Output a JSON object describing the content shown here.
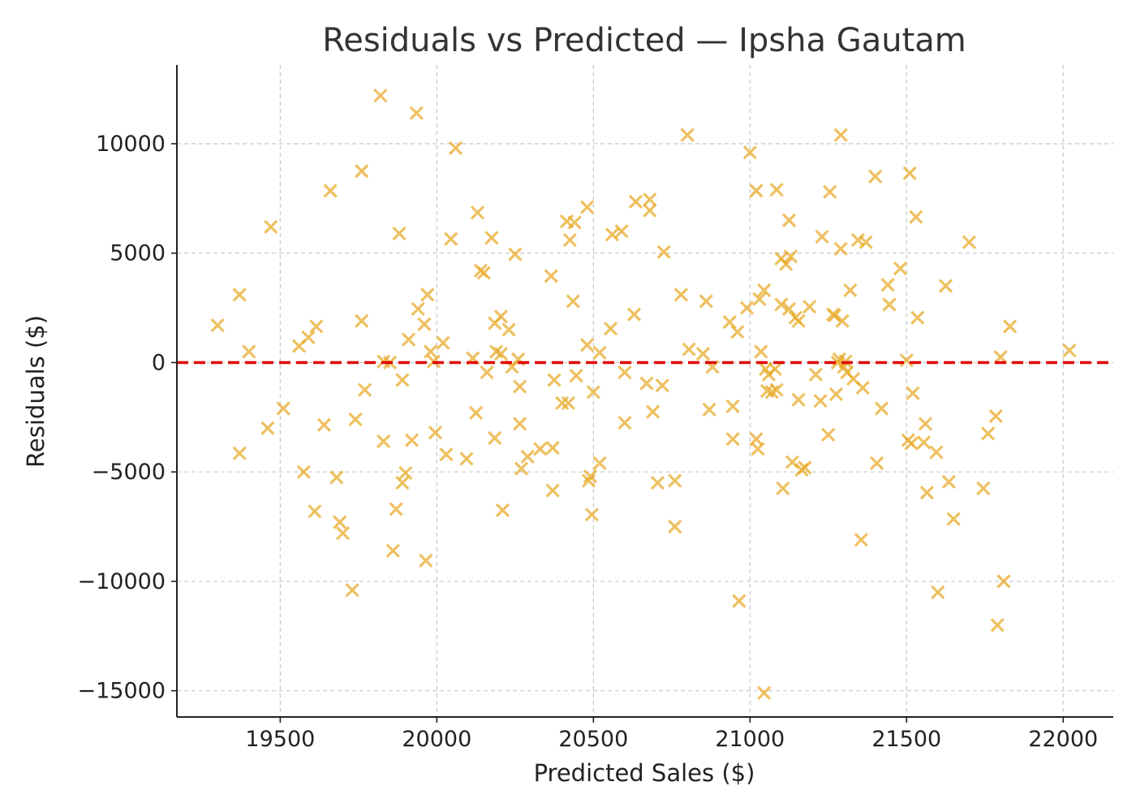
{
  "chart_data": {
    "type": "scatter",
    "title": "Residuals vs Predicted — Ipsha Gautam",
    "xlabel": "Predicted Sales ($)",
    "ylabel": "Residuals ($)",
    "xlim": [
      19170,
      22160
    ],
    "ylim": [
      -16200,
      13600
    ],
    "xticks": [
      19500,
      20000,
      20500,
      21000,
      21500,
      22000
    ],
    "yticks": [
      -15000,
      -10000,
      -5000,
      0,
      5000,
      10000
    ],
    "xtick_labels": [
      "19500",
      "20000",
      "20500",
      "21000",
      "21500",
      "22000"
    ],
    "ytick_labels": [
      "−15000",
      "−10000",
      "−5000",
      "0",
      "5000",
      "10000"
    ],
    "grid": true,
    "marker": "x",
    "marker_color": "#e8a923",
    "marker_opacity": 0.72,
    "reference_line": {
      "y": 0,
      "color": "#e00000",
      "style": "dashed"
    },
    "points": [
      [
        19300,
        1700
      ],
      [
        19370,
        3100
      ],
      [
        19370,
        -4150
      ],
      [
        19400,
        500
      ],
      [
        19460,
        -3000
      ],
      [
        19470,
        6200
      ],
      [
        19510,
        -2100
      ],
      [
        19560,
        750
      ],
      [
        19575,
        -5000
      ],
      [
        19590,
        1150
      ],
      [
        19610,
        -6800
      ],
      [
        19615,
        1650
      ],
      [
        19640,
        -2850
      ],
      [
        19660,
        7850
      ],
      [
        19680,
        -5250
      ],
      [
        19690,
        -7300
      ],
      [
        19700,
        -7800
      ],
      [
        19730,
        -10400
      ],
      [
        19740,
        -2600
      ],
      [
        19760,
        8750
      ],
      [
        19760,
        1900
      ],
      [
        19770,
        -1250
      ],
      [
        19820,
        12200
      ],
      [
        19830,
        -3600
      ],
      [
        19830,
        50
      ],
      [
        19850,
        0
      ],
      [
        19860,
        -8600
      ],
      [
        19870,
        -6700
      ],
      [
        19880,
        5900
      ],
      [
        19890,
        -5500
      ],
      [
        19890,
        -800
      ],
      [
        19900,
        -5050
      ],
      [
        19910,
        1050
      ],
      [
        19920,
        -3550
      ],
      [
        19935,
        11400
      ],
      [
        19940,
        2450
      ],
      [
        19960,
        1750
      ],
      [
        19965,
        -9050
      ],
      [
        19970,
        3100
      ],
      [
        19980,
        500
      ],
      [
        19990,
        50
      ],
      [
        19995,
        -3200
      ],
      [
        20020,
        900
      ],
      [
        20030,
        -4200
      ],
      [
        20045,
        5650
      ],
      [
        20060,
        9800
      ],
      [
        20095,
        -4400
      ],
      [
        20115,
        200
      ],
      [
        20125,
        -2300
      ],
      [
        20130,
        6850
      ],
      [
        20140,
        4200
      ],
      [
        20150,
        4100
      ],
      [
        20160,
        -450
      ],
      [
        20175,
        5700
      ],
      [
        20185,
        1800
      ],
      [
        20185,
        -3450
      ],
      [
        20190,
        500
      ],
      [
        20205,
        2100
      ],
      [
        20205,
        400
      ],
      [
        20210,
        -6750
      ],
      [
        20230,
        1500
      ],
      [
        20240,
        -200
      ],
      [
        20250,
        4950
      ],
      [
        20260,
        150
      ],
      [
        20265,
        -1100
      ],
      [
        20265,
        -2800
      ],
      [
        20270,
        -4850
      ],
      [
        20290,
        -4300
      ],
      [
        20330,
        -3950
      ],
      [
        20365,
        3950
      ],
      [
        20370,
        -3900
      ],
      [
        20375,
        -800
      ],
      [
        20370,
        -5850
      ],
      [
        20400,
        -1850
      ],
      [
        20415,
        6450
      ],
      [
        20420,
        -1850
      ],
      [
        20425,
        5600
      ],
      [
        20435,
        2800
      ],
      [
        20440,
        6400
      ],
      [
        20445,
        -600
      ],
      [
        20480,
        7100
      ],
      [
        20480,
        800
      ],
      [
        20485,
        -5400
      ],
      [
        20490,
        -5200
      ],
      [
        20495,
        -6950
      ],
      [
        20500,
        -1350
      ],
      [
        20520,
        -4600
      ],
      [
        20520,
        450
      ],
      [
        20555,
        1550
      ],
      [
        20560,
        5850
      ],
      [
        20590,
        6000
      ],
      [
        20600,
        -450
      ],
      [
        20600,
        -2750
      ],
      [
        20630,
        2200
      ],
      [
        20635,
        7350
      ],
      [
        20670,
        -950
      ],
      [
        20680,
        7450
      ],
      [
        20680,
        6950
      ],
      [
        20690,
        -2250
      ],
      [
        20705,
        -5500
      ],
      [
        20720,
        -1050
      ],
      [
        20725,
        5050
      ],
      [
        20760,
        -5400
      ],
      [
        20760,
        -7500
      ],
      [
        20780,
        3100
      ],
      [
        20800,
        10400
      ],
      [
        20805,
        600
      ],
      [
        20850,
        400
      ],
      [
        20860,
        2800
      ],
      [
        20870,
        -2150
      ],
      [
        20880,
        -200
      ],
      [
        20935,
        1850
      ],
      [
        20945,
        -2000
      ],
      [
        20945,
        -3500
      ],
      [
        20960,
        1400
      ],
      [
        20965,
        -10900
      ],
      [
        20990,
        2500
      ],
      [
        21000,
        9600
      ],
      [
        21020,
        7850
      ],
      [
        21020,
        -3500
      ],
      [
        21025,
        -3950
      ],
      [
        21030,
        2900
      ],
      [
        21035,
        500
      ],
      [
        21045,
        3300
      ],
      [
        21050,
        -300
      ],
      [
        21045,
        -15100
      ],
      [
        21055,
        -1300
      ],
      [
        21060,
        -550
      ],
      [
        21070,
        -1350
      ],
      [
        21080,
        -300
      ],
      [
        21085,
        7900
      ],
      [
        21085,
        -1250
      ],
      [
        21100,
        4750
      ],
      [
        21100,
        2650
      ],
      [
        21105,
        -5750
      ],
      [
        21115,
        4500
      ],
      [
        21125,
        6500
      ],
      [
        21125,
        2450
      ],
      [
        21130,
        4850
      ],
      [
        21135,
        -4550
      ],
      [
        21145,
        2050
      ],
      [
        21155,
        -1700
      ],
      [
        21155,
        1900
      ],
      [
        21165,
        -4900
      ],
      [
        21175,
        -4800
      ],
      [
        21190,
        2550
      ],
      [
        21210,
        -550
      ],
      [
        21225,
        -1750
      ],
      [
        21230,
        5750
      ],
      [
        21250,
        -3300
      ],
      [
        21255,
        7800
      ],
      [
        21265,
        2200
      ],
      [
        21270,
        2150
      ],
      [
        21275,
        -1450
      ],
      [
        21280,
        0
      ],
      [
        21285,
        150
      ],
      [
        21290,
        10400
      ],
      [
        21290,
        5200
      ],
      [
        21295,
        1900
      ],
      [
        21300,
        -200
      ],
      [
        21305,
        50
      ],
      [
        21310,
        -450
      ],
      [
        21320,
        3300
      ],
      [
        21330,
        -750
      ],
      [
        21345,
        5600
      ],
      [
        21355,
        -8100
      ],
      [
        21360,
        -1150
      ],
      [
        21370,
        5500
      ],
      [
        21400,
        8500
      ],
      [
        21405,
        -4600
      ],
      [
        21420,
        -2100
      ],
      [
        21440,
        3550
      ],
      [
        21445,
        2650
      ],
      [
        21480,
        4300
      ],
      [
        21500,
        100
      ],
      [
        21505,
        -3550
      ],
      [
        21510,
        8650
      ],
      [
        21515,
        -3700
      ],
      [
        21520,
        -1400
      ],
      [
        21530,
        6650
      ],
      [
        21535,
        2050
      ],
      [
        21555,
        -3650
      ],
      [
        21560,
        -2800
      ],
      [
        21565,
        -5950
      ],
      [
        21595,
        -4100
      ],
      [
        21600,
        -10500
      ],
      [
        21625,
        3500
      ],
      [
        21635,
        -5450
      ],
      [
        21650,
        -7150
      ],
      [
        21700,
        5500
      ],
      [
        21745,
        -5750
      ],
      [
        21760,
        -3250
      ],
      [
        21785,
        -2450
      ],
      [
        21790,
        -12000
      ],
      [
        21800,
        250
      ],
      [
        21810,
        -10000
      ],
      [
        21830,
        1650
      ],
      [
        22020,
        550
      ]
    ]
  }
}
